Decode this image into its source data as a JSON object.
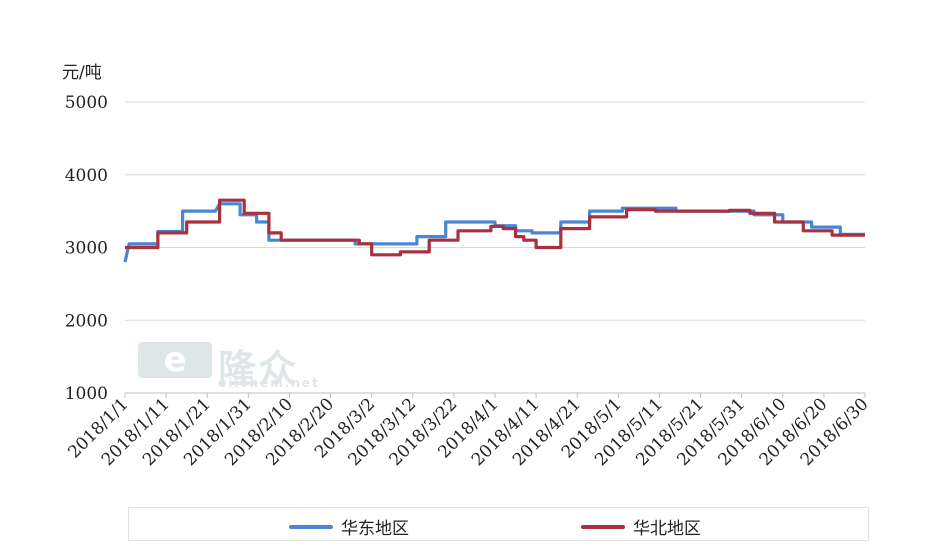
{
  "unit_label": "元/吨",
  "watermark": {
    "mark": "e",
    "cn": "隆众",
    "url": "oilchem.net"
  },
  "colors": {
    "east": "#4a86d4",
    "north": "#a8303f",
    "grid": "#d9d9d9",
    "axis": "#bfbfbf"
  },
  "chart_data": {
    "type": "line",
    "ylabel": "元/吨",
    "ylim": [
      1000,
      5000
    ],
    "yticks": [
      1000,
      2000,
      3000,
      4000,
      5000
    ],
    "x_start": "2018/1/1",
    "x_end": "2018/6/30",
    "xticks": [
      "2018/1/1",
      "2018/1/11",
      "2018/1/21",
      "2018/1/31",
      "2018/2/10",
      "2018/2/20",
      "2018/3/2",
      "2018/3/12",
      "2018/3/22",
      "2018/4/1",
      "2018/4/11",
      "2018/4/21",
      "2018/5/1",
      "2018/5/11",
      "2018/5/21",
      "2018/5/31",
      "2018/6/10",
      "2018/6/20",
      "2018/6/30"
    ],
    "legend_position": "bottom",
    "grid": true,
    "series": [
      {
        "name": "华东地区",
        "color": "#4a86d4",
        "points": [
          [
            "2018/1/1",
            2800
          ],
          [
            "2018/1/2",
            3050
          ],
          [
            "2018/1/9",
            3050
          ],
          [
            "2018/1/9",
            3220
          ],
          [
            "2018/1/15",
            3220
          ],
          [
            "2018/1/15",
            3500
          ],
          [
            "2018/1/23",
            3500
          ],
          [
            "2018/1/24",
            3600
          ],
          [
            "2018/1/29",
            3600
          ],
          [
            "2018/1/29",
            3450
          ],
          [
            "2018/2/2",
            3450
          ],
          [
            "2018/2/2",
            3350
          ],
          [
            "2018/2/5",
            3350
          ],
          [
            "2018/2/5",
            3100
          ],
          [
            "2018/2/26",
            3100
          ],
          [
            "2018/2/26",
            3050
          ],
          [
            "2018/3/13",
            3050
          ],
          [
            "2018/3/13",
            3150
          ],
          [
            "2018/3/20",
            3150
          ],
          [
            "2018/3/20",
            3350
          ],
          [
            "2018/4/1",
            3350
          ],
          [
            "2018/4/1",
            3300
          ],
          [
            "2018/4/6",
            3300
          ],
          [
            "2018/4/6",
            3230
          ],
          [
            "2018/4/10",
            3230
          ],
          [
            "2018/4/10",
            3200
          ],
          [
            "2018/4/17",
            3200
          ],
          [
            "2018/4/17",
            3350
          ],
          [
            "2018/4/24",
            3350
          ],
          [
            "2018/4/24",
            3500
          ],
          [
            "2018/5/2",
            3500
          ],
          [
            "2018/5/2",
            3540
          ],
          [
            "2018/5/15",
            3540
          ],
          [
            "2018/5/15",
            3500
          ],
          [
            "2018/6/3",
            3500
          ],
          [
            "2018/6/3",
            3450
          ],
          [
            "2018/6/10",
            3450
          ],
          [
            "2018/6/10",
            3350
          ],
          [
            "2018/6/17",
            3350
          ],
          [
            "2018/6/17",
            3280
          ],
          [
            "2018/6/24",
            3280
          ],
          [
            "2018/6/24",
            3180
          ],
          [
            "2018/6/30",
            3180
          ]
        ]
      },
      {
        "name": "华北地区",
        "color": "#a8303f",
        "points": [
          [
            "2018/1/1",
            3000
          ],
          [
            "2018/1/9",
            3000
          ],
          [
            "2018/1/9",
            3200
          ],
          [
            "2018/1/16",
            3200
          ],
          [
            "2018/1/16",
            3350
          ],
          [
            "2018/1/24",
            3350
          ],
          [
            "2018/1/24",
            3650
          ],
          [
            "2018/1/30",
            3650
          ],
          [
            "2018/1/30",
            3470
          ],
          [
            "2018/2/5",
            3470
          ],
          [
            "2018/2/5",
            3200
          ],
          [
            "2018/2/8",
            3200
          ],
          [
            "2018/2/8",
            3100
          ],
          [
            "2018/2/27",
            3100
          ],
          [
            "2018/2/27",
            3050
          ],
          [
            "2018/3/2",
            3050
          ],
          [
            "2018/3/2",
            2900
          ],
          [
            "2018/3/9",
            2900
          ],
          [
            "2018/3/9",
            2940
          ],
          [
            "2018/3/16",
            2940
          ],
          [
            "2018/3/16",
            3100
          ],
          [
            "2018/3/23",
            3100
          ],
          [
            "2018/3/23",
            3230
          ],
          [
            "2018/3/31",
            3230
          ],
          [
            "2018/3/31",
            3290
          ],
          [
            "2018/4/3",
            3290
          ],
          [
            "2018/4/3",
            3260
          ],
          [
            "2018/4/6",
            3260
          ],
          [
            "2018/4/6",
            3150
          ],
          [
            "2018/4/8",
            3150
          ],
          [
            "2018/4/8",
            3100
          ],
          [
            "2018/4/11",
            3100
          ],
          [
            "2018/4/11",
            3000
          ],
          [
            "2018/4/17",
            3000
          ],
          [
            "2018/4/17",
            3260
          ],
          [
            "2018/4/24",
            3260
          ],
          [
            "2018/4/24",
            3420
          ],
          [
            "2018/5/3",
            3420
          ],
          [
            "2018/5/3",
            3520
          ],
          [
            "2018/5/10",
            3520
          ],
          [
            "2018/5/10",
            3500
          ],
          [
            "2018/5/28",
            3500
          ],
          [
            "2018/5/28",
            3510
          ],
          [
            "2018/6/2",
            3510
          ],
          [
            "2018/6/2",
            3470
          ],
          [
            "2018/6/8",
            3470
          ],
          [
            "2018/6/8",
            3350
          ],
          [
            "2018/6/15",
            3350
          ],
          [
            "2018/6/15",
            3230
          ],
          [
            "2018/6/22",
            3230
          ],
          [
            "2018/6/22",
            3170
          ],
          [
            "2018/6/30",
            3170
          ]
        ]
      }
    ]
  }
}
